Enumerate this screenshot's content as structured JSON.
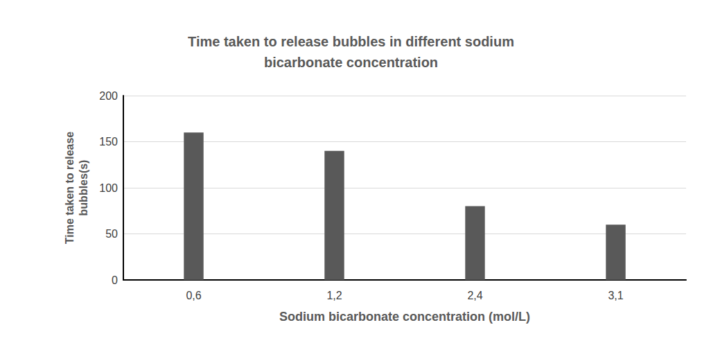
{
  "chart_data": {
    "type": "bar",
    "title": "Time taken to release bubbles in different sodium bicarbonate concentration",
    "x_label": "Sodium bicarbonate concentration (mol/L)",
    "y_label": "Time taken to release bubbles(s)",
    "categories": [
      "0,6",
      "1,2",
      "2,4",
      "3,1"
    ],
    "values": [
      160,
      140,
      80,
      60
    ],
    "color": "#595959",
    "ylim": [
      0,
      200
    ],
    "yticks": [
      0,
      50,
      100,
      150,
      200
    ],
    "grid": true
  }
}
